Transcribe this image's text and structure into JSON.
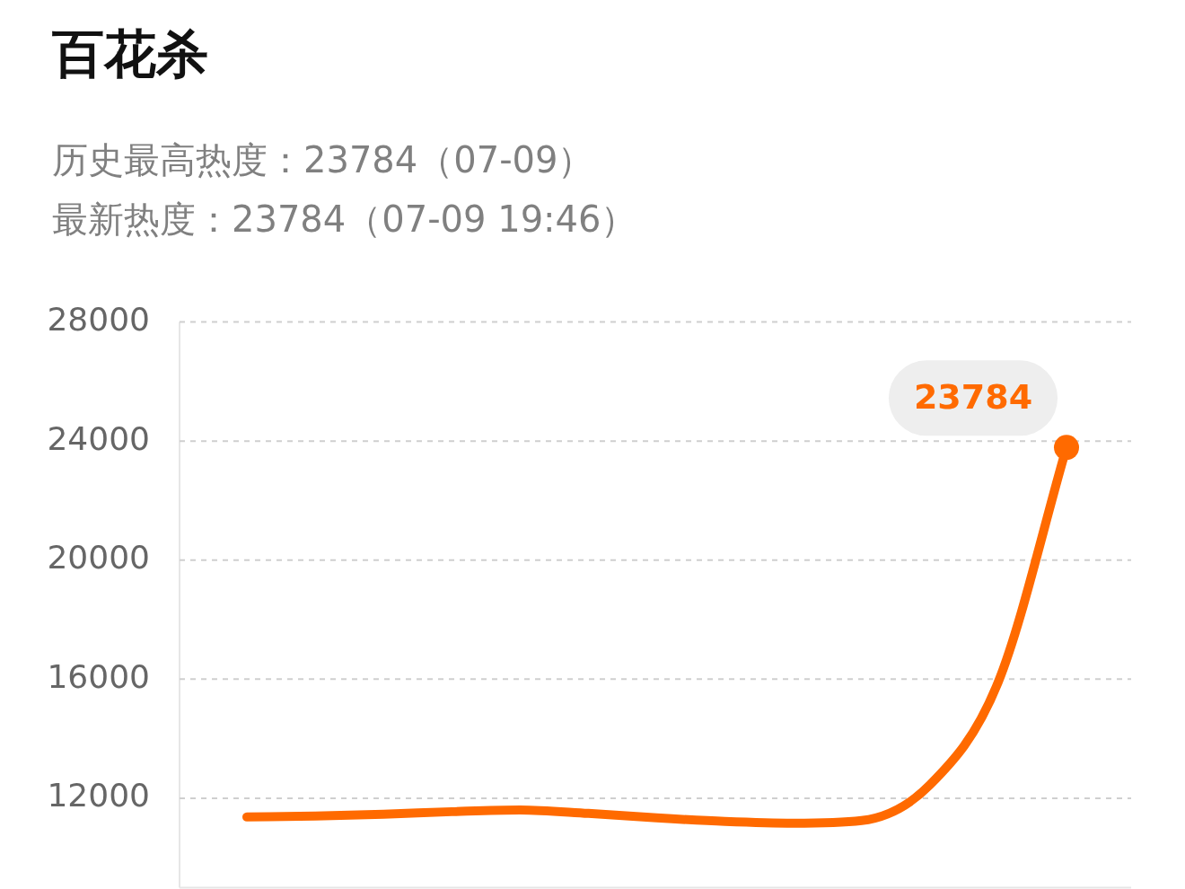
{
  "chart_data": {
    "type": "line",
    "title": "百花杀",
    "subtitle": "历史最高热度：23784（07-09）",
    "annotations": [
      "最新热度：23784（07-09 19:46）"
    ],
    "categories": [
      null,
      null,
      null,
      null,
      null,
      null,
      null,
      null,
      null,
      null,
      null,
      null,
      null
    ],
    "series": [
      {
        "color": "#ff6a00",
        "values": [
          11370,
          11400,
          11460,
          11550,
          11610,
          11490,
          11340,
          11220,
          11160,
          11250,
          12450,
          15900,
          23784
        ],
        "value_labels": [
          null,
          null,
          null,
          null,
          null,
          null,
          null,
          null,
          null,
          null,
          null,
          null,
          "23784"
        ]
      }
    ],
    "ylim": [
      9000,
      28000
    ],
    "yticks": [
      12000,
      16000,
      20000,
      24000,
      28000
    ],
    "grid": "y",
    "legend": false
  }
}
